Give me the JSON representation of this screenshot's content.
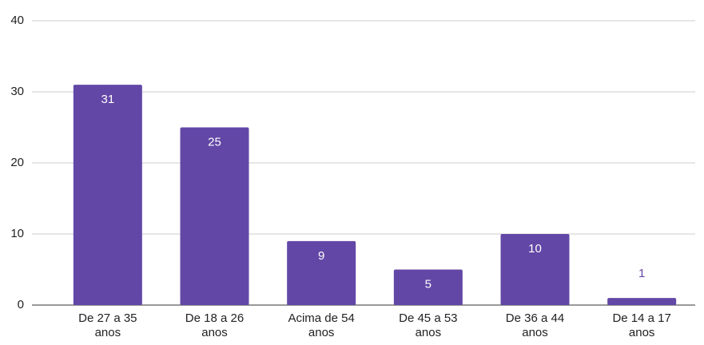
{
  "chart_data": {
    "type": "bar",
    "categories": [
      "De 27 a 35 anos",
      "De 18 a 26 anos",
      "Acima de 54 anos",
      "De 45 a 53 anos",
      "De 36 a 44 anos",
      "De 14 a 17 anos"
    ],
    "values": [
      31,
      25,
      9,
      5,
      10,
      1
    ],
    "color": "#6347a6",
    "ylim": [
      0,
      40
    ],
    "yticks": [
      0,
      10,
      20,
      30,
      40
    ],
    "grid": true
  }
}
